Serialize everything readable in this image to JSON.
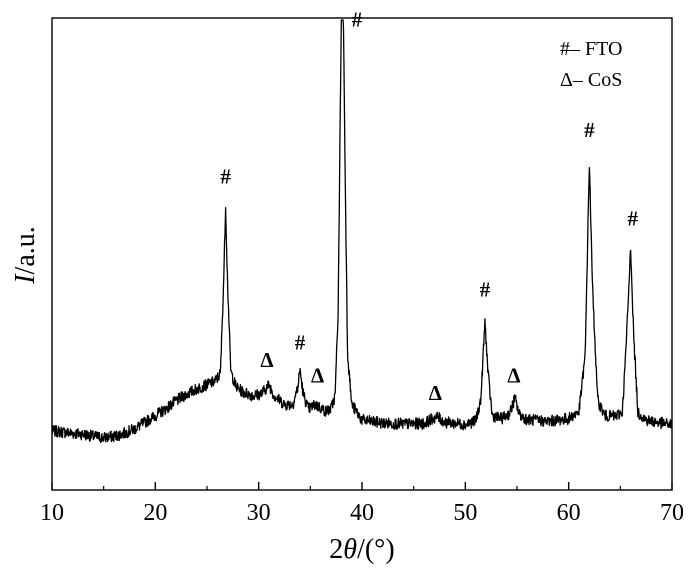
{
  "chart_data": {
    "type": "line",
    "xlabel_parts": [
      "2",
      "θ",
      "/(°)"
    ],
    "ylabel_parts": [
      "I",
      "/a.u."
    ],
    "xlim": [
      10,
      70
    ],
    "ylim": [
      0,
      100
    ],
    "x_ticks": [
      10,
      20,
      30,
      40,
      50,
      60,
      70
    ],
    "x_tick_labels": [
      "10",
      "20",
      "30",
      "40",
      "50",
      "60",
      "70"
    ],
    "grid": false,
    "legend_position": "top-right",
    "legend": [
      {
        "symbol": "#",
        "text": "– FTO"
      },
      {
        "symbol": "Δ",
        "text": "– CoS"
      }
    ],
    "series": [
      {
        "points": [
          [
            10,
            7.0
          ],
          [
            11,
            6.8
          ],
          [
            12,
            6.5
          ],
          [
            13,
            6.3
          ],
          [
            14,
            5.8
          ],
          [
            15,
            5.5
          ],
          [
            16,
            5.8
          ],
          [
            17,
            6.5
          ],
          [
            18,
            7.5
          ],
          [
            19,
            9.0
          ],
          [
            20,
            10.5
          ],
          [
            21,
            12.0
          ],
          [
            22,
            13.8
          ],
          [
            23,
            15.3
          ],
          [
            24,
            16.5
          ],
          [
            25,
            17.5
          ],
          [
            25.8,
            18.3
          ],
          [
            26.3,
            20.0
          ],
          [
            26.6,
            40.0
          ],
          [
            26.8,
            57.8
          ],
          [
            27.0,
            40.0
          ],
          [
            27.3,
            20.5
          ],
          [
            27.8,
            17.0
          ],
          [
            28.5,
            15.8
          ],
          [
            29.5,
            15.0
          ],
          [
            30.3,
            15.5
          ],
          [
            31.0,
            17.5
          ],
          [
            31.5,
            15.0
          ],
          [
            32.5,
            13.0
          ],
          [
            33.3,
            13.0
          ],
          [
            33.8,
            17.0
          ],
          [
            34.0,
            21.0
          ],
          [
            34.3,
            15.5
          ],
          [
            34.8,
            12.0
          ],
          [
            35.5,
            13.0
          ],
          [
            36.0,
            12.2
          ],
          [
            36.5,
            11.5
          ],
          [
            37.0,
            12.0
          ],
          [
            37.4,
            15.0
          ],
          [
            37.7,
            35.0
          ],
          [
            37.9,
            80.0
          ],
          [
            38.0,
            100
          ],
          [
            38.2,
            100
          ],
          [
            38.4,
            60.0
          ],
          [
            38.6,
            25.0
          ],
          [
            39.0,
            13.0
          ],
          [
            40.0,
            9.5
          ],
          [
            42.0,
            8.8
          ],
          [
            44.0,
            8.6
          ],
          [
            46.0,
            8.7
          ],
          [
            46.8,
            9.8
          ],
          [
            47.3,
            10.2
          ],
          [
            48.0,
            9.0
          ],
          [
            50.0,
            8.5
          ],
          [
            51.0,
            9.3
          ],
          [
            51.5,
            14.0
          ],
          [
            51.9,
            32.0
          ],
          [
            52.2,
            20.0
          ],
          [
            52.6,
            10.5
          ],
          [
            53.5,
            9.8
          ],
          [
            54.3,
            11.0
          ],
          [
            54.8,
            14.5
          ],
          [
            55.2,
            10.8
          ],
          [
            56.0,
            9.6
          ],
          [
            58.0,
            9.2
          ],
          [
            60.0,
            9.8
          ],
          [
            61.0,
            11.5
          ],
          [
            61.6,
            24.0
          ],
          [
            62.0,
            68.0
          ],
          [
            62.3,
            40.0
          ],
          [
            62.8,
            14.0
          ],
          [
            63.5,
            10.5
          ],
          [
            64.5,
            10.3
          ],
          [
            65.2,
            11.3
          ],
          [
            65.6,
            28.0
          ],
          [
            66.0,
            48.5
          ],
          [
            66.3,
            28.0
          ],
          [
            66.7,
            11.2
          ],
          [
            67.5,
            9.5
          ],
          [
            68.5,
            9.0
          ],
          [
            69.5,
            8.6
          ],
          [
            70,
            8.5
          ]
        ]
      }
    ],
    "annotations": [
      {
        "label": "#",
        "x": 26.8,
        "y": 63.0
      },
      {
        "label": "#",
        "x": 39.5,
        "y": 98.5
      },
      {
        "label": "#",
        "x": 34.0,
        "y": 25.5
      },
      {
        "label": "#",
        "x": 51.9,
        "y": 37.5
      },
      {
        "label": "#",
        "x": 62.0,
        "y": 73.5
      },
      {
        "label": "#",
        "x": 66.2,
        "y": 53.5
      },
      {
        "label": "Δ",
        "x": 30.8,
        "y": 21.5
      },
      {
        "label": "Δ",
        "x": 35.7,
        "y": 18.0
      },
      {
        "label": "Δ",
        "x": 47.1,
        "y": 14.0
      },
      {
        "label": "Δ",
        "x": 54.7,
        "y": 18.0
      }
    ]
  }
}
